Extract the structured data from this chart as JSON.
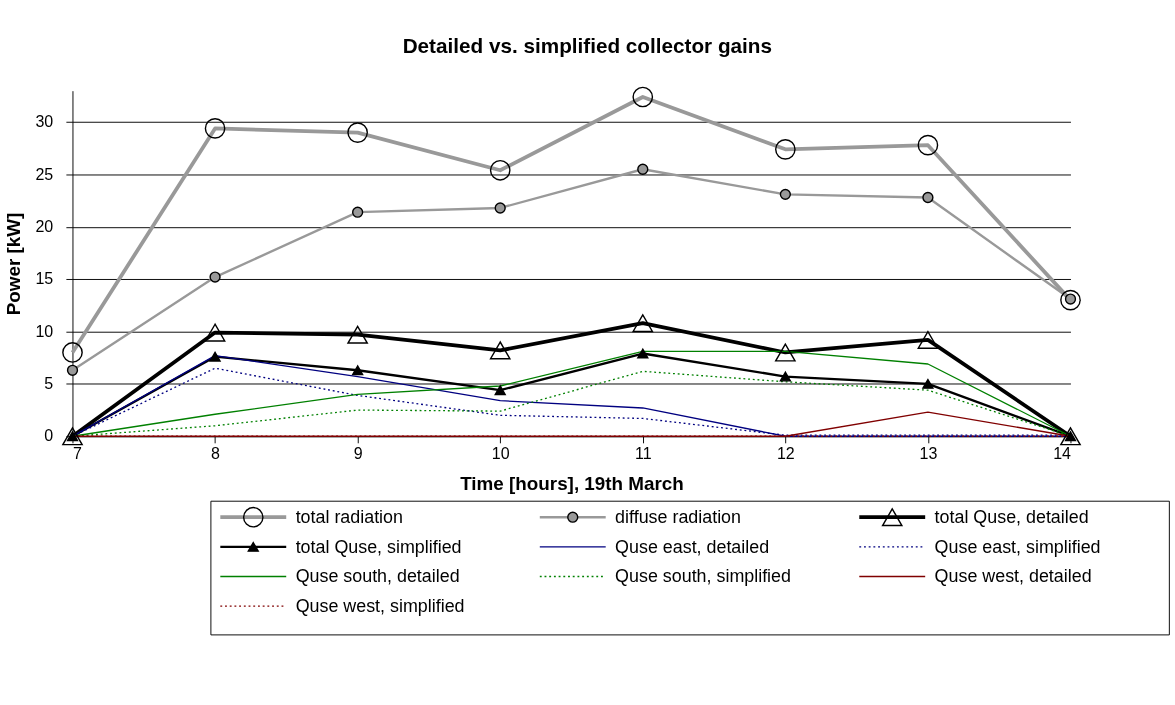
{
  "chart_data": {
    "type": "line",
    "title": "Detailed vs. simplified collector gains",
    "xlabel": "Time [hours], 19th March",
    "ylabel": "Power [kW]",
    "x": [
      7,
      8,
      9,
      10,
      11,
      12,
      13,
      14
    ],
    "xlim": [
      7,
      14
    ],
    "xticks": [
      7,
      8,
      9,
      10,
      11,
      12,
      13,
      14
    ],
    "ylim": [
      0,
      33
    ],
    "yticks": [
      0,
      5,
      10,
      15,
      20,
      25,
      30
    ],
    "grid": "y",
    "legend": "bottom",
    "series": [
      {
        "name": "total radiation",
        "color": "#999999",
        "values": [
          8.0,
          29.4,
          29.0,
          25.4,
          32.4,
          27.4,
          27.8,
          13.0
        ],
        "marker": "circle",
        "line_style": "solid"
      },
      {
        "name": "diffuse radiation",
        "color": "#999999",
        "values": [
          6.3,
          15.2,
          21.4,
          21.8,
          25.5,
          23.1,
          22.8,
          13.1
        ],
        "marker": "circle",
        "line_style": "solid"
      },
      {
        "name": "total Quse, detailed",
        "color": "#000000",
        "values": [
          0,
          9.9,
          9.7,
          8.2,
          10.8,
          8.0,
          9.2,
          0
        ],
        "marker": "triangle",
        "line_style": "solid"
      },
      {
        "name": "total Quse, simplified",
        "color": "#000000",
        "values": [
          0,
          7.6,
          6.3,
          4.4,
          7.9,
          5.7,
          5.0,
          0
        ],
        "marker": "triangle",
        "line_style": "solid"
      },
      {
        "name": "Quse east, detailed",
        "color": "#000080",
        "values": [
          0,
          7.7,
          5.7,
          3.4,
          2.7,
          0,
          0,
          0
        ],
        "marker": "none",
        "line_style": "solid"
      },
      {
        "name": "Quse east, simplified",
        "color": "#000080",
        "values": [
          0,
          6.5,
          3.9,
          2.0,
          1.7,
          0.1,
          0.1,
          0.1
        ],
        "marker": "none",
        "line_style": "dotted"
      },
      {
        "name": "Quse south, detailed",
        "color": "#008000",
        "values": [
          0,
          2.1,
          4.0,
          4.8,
          8.1,
          8.1,
          6.9,
          0
        ],
        "marker": "none",
        "line_style": "solid"
      },
      {
        "name": "Quse south, simplified",
        "color": "#008000",
        "values": [
          0,
          1.0,
          2.5,
          2.4,
          6.2,
          5.2,
          4.4,
          0
        ],
        "marker": "none",
        "line_style": "dotted"
      },
      {
        "name": "Quse west, detailed",
        "color": "#800000",
        "values": [
          0,
          0,
          0,
          0,
          0,
          0,
          2.3,
          0
        ],
        "marker": "none",
        "line_style": "solid"
      },
      {
        "name": "Quse west, simplified",
        "color": "#800000",
        "values": [
          0,
          0,
          0,
          0,
          0,
          0,
          0,
          0
        ],
        "marker": "none",
        "line_style": "dotted"
      }
    ]
  }
}
